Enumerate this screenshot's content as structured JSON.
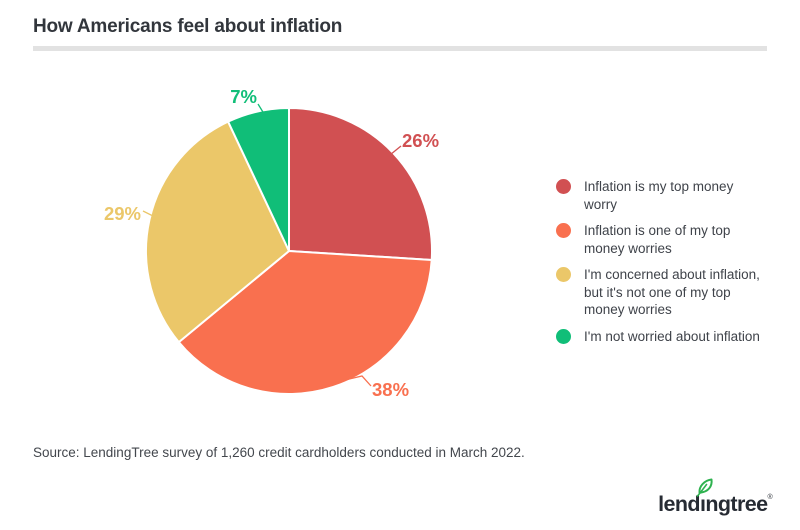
{
  "header": {
    "title": "How Americans feel about inflation"
  },
  "chart_data": {
    "type": "pie",
    "title": "How Americans feel about inflation",
    "categories": [
      "Inflation is my top money worry",
      "Inflation is one of my top money worries",
      "I'm concerned about inflation, but it's not one of my top money worries",
      "I'm not worried about inflation"
    ],
    "values": [
      26,
      38,
      29,
      7
    ],
    "slices": [
      {
        "label": "Inflation is my top money worry",
        "value": 26,
        "display": "26%",
        "color": "#d15052"
      },
      {
        "label": "Inflation is one of my top money worries",
        "value": 38,
        "display": "38%",
        "color": "#f9704f"
      },
      {
        "label": "I'm concerned about inflation, but it's not one of my top money worries",
        "value": 29,
        "display": "29%",
        "color": "#ebc769"
      },
      {
        "label": "I'm not worried about inflation",
        "value": 7,
        "display": "7%",
        "color": "#10be78"
      }
    ],
    "start_angle_deg": 0,
    "direction": "clockwise",
    "legend_position": "right",
    "slice_border_color": "#ffffff"
  },
  "footer": {
    "source": "Source: LendingTree survey of 1,260 credit cardholders conducted in March 2022."
  },
  "branding": {
    "logo_text": "lendingtree",
    "trademark": "®",
    "leaf_icon_color": "#2eb24f",
    "logo_text_color": "#262b33"
  }
}
